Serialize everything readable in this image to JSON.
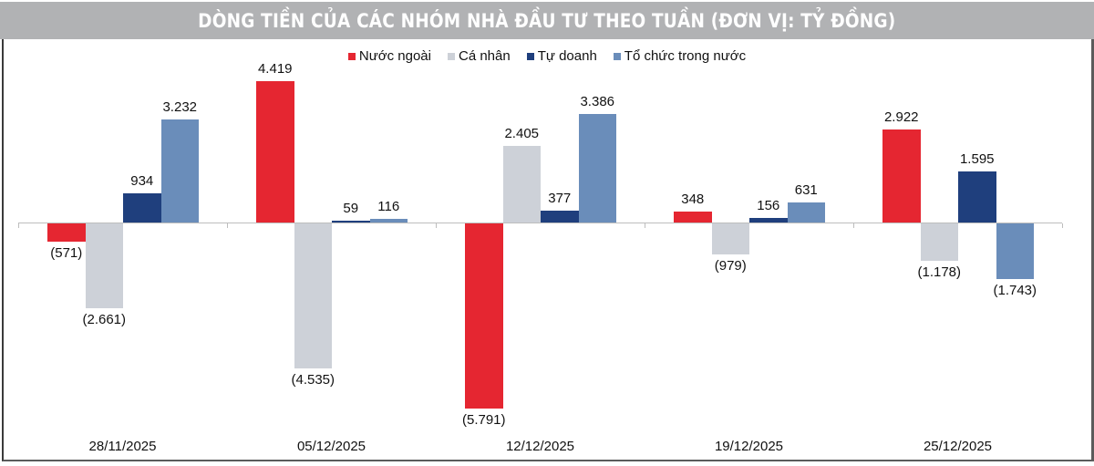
{
  "title": "DÒNG TIỀN CỦA CÁC NHÓM NHÀ ĐẦU TƯ THEO TUẦN (ĐƠN VỊ: TỶ ĐỒNG)",
  "legend": [
    {
      "label": "Nước ngoài",
      "color": "#e52631"
    },
    {
      "label": "Cá nhân",
      "color": "#cdd1d8"
    },
    {
      "label": "Tự doanh",
      "color": "#1f3f7d"
    },
    {
      "label": "Tổ chức trong nước",
      "color": "#6a8dba"
    }
  ],
  "chart_data": {
    "type": "bar",
    "title": "DÒNG TIỀN CỦA CÁC NHÓM NHÀ ĐẦU TƯ THEO TUẦN (ĐƠN VỊ: TỶ ĐỒNG)",
    "xlabel": "",
    "ylabel": "Tỷ đồng",
    "categories": [
      "28/11/2025",
      "05/12/2025",
      "12/12/2025",
      "19/12/2025",
      "25/12/2025"
    ],
    "series": [
      {
        "name": "Nước ngoài",
        "color": "#e52631",
        "values": [
          -571,
          4419,
          -5791,
          348,
          2922
        ],
        "labels": [
          "(571)",
          "4.419",
          "(5.791)",
          "348",
          "2.922"
        ]
      },
      {
        "name": "Cá nhân",
        "color": "#cdd1d8",
        "values": [
          -2661,
          -4535,
          2405,
          -979,
          -1178
        ],
        "labels": [
          "(2.661)",
          "(4.535)",
          "2.405",
          "(979)",
          "(1.178)"
        ]
      },
      {
        "name": "Tự doanh",
        "color": "#1f3f7d",
        "values": [
          934,
          59,
          377,
          156,
          1595
        ],
        "labels": [
          "934",
          "59",
          "377",
          "156",
          "1.595"
        ]
      },
      {
        "name": "Tổ chức trong nước",
        "color": "#6a8dba",
        "values": [
          3232,
          116,
          3386,
          631,
          -1743
        ],
        "labels": [
          "3.232",
          "116",
          "3.386",
          "631",
          "(1.743)"
        ]
      }
    ],
    "grid": false,
    "legend_position": "top",
    "ylim": [
      -6000,
      4600
    ]
  }
}
